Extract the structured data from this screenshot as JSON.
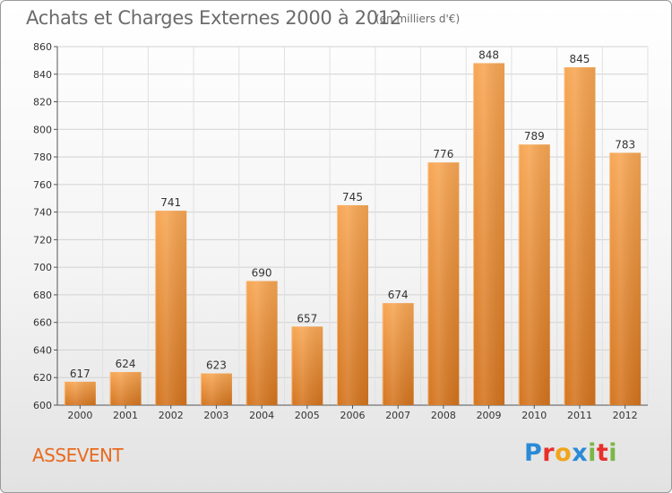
{
  "header": {
    "title": "Achats et Charges Externes 2000 à 2012",
    "unit": "(en milliers d'€)"
  },
  "footer": {
    "commune": "ASSEVENT",
    "logo_text": "Proxiti",
    "logo_letters": [
      {
        "ch": "P",
        "color": "#2a8ad6"
      },
      {
        "ch": "r",
        "color": "#e8302a"
      },
      {
        "ch": "o",
        "color": "#f2a51a"
      },
      {
        "ch": "x",
        "color": "#2a8ad6"
      },
      {
        "ch": "i",
        "color": "#7ab648"
      },
      {
        "ch": "t",
        "color": "#e8302a"
      },
      {
        "ch": "i",
        "color": "#7ab648"
      }
    ]
  },
  "chart_data": {
    "type": "bar",
    "title": "Achats et Charges Externes 2000 à 2012",
    "xlabel": "",
    "ylabel": "",
    "categories": [
      "2000",
      "2001",
      "2002",
      "2003",
      "2004",
      "2005",
      "2006",
      "2007",
      "2008",
      "2009",
      "2010",
      "2011",
      "2012"
    ],
    "values": [
      617,
      624,
      741,
      623,
      690,
      657,
      745,
      674,
      776,
      848,
      789,
      845,
      783
    ],
    "ylim": [
      600,
      860
    ],
    "yticks": [
      600,
      620,
      640,
      660,
      680,
      700,
      720,
      740,
      760,
      780,
      800,
      820,
      840,
      860
    ],
    "grid": true,
    "bar_color_top": "#f7a653",
    "bar_color_bottom": "#d4741e"
  }
}
